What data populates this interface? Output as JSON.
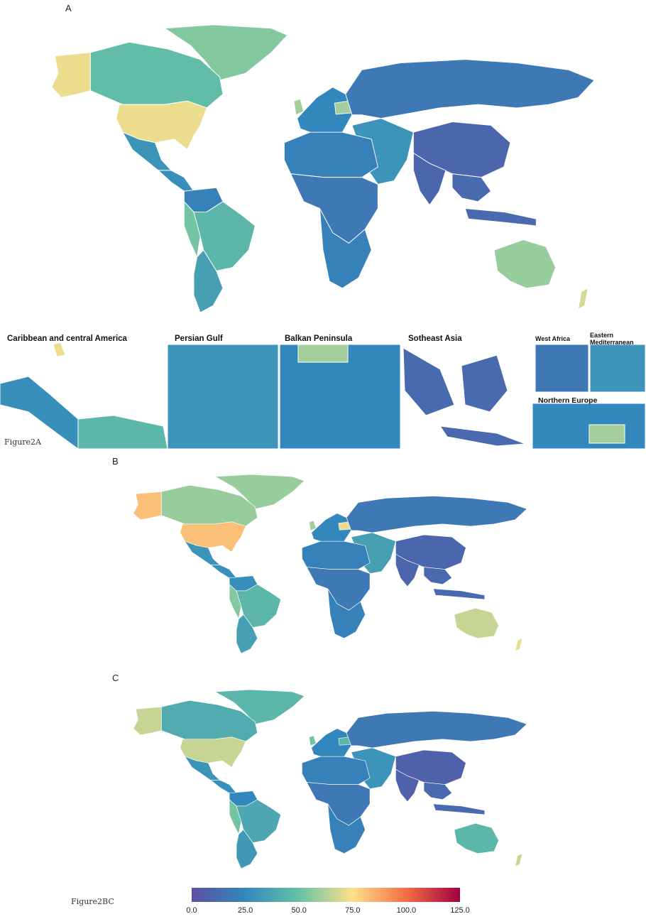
{
  "panels": {
    "a": {
      "letter": "A",
      "caption": "Figure2A"
    },
    "b": {
      "letter": "B"
    },
    "c": {
      "letter": "C",
      "caption": "Figure2BC"
    }
  },
  "insets": [
    {
      "title": "Caribbean and central America"
    },
    {
      "title": "Persian Gulf"
    },
    {
      "title": "Balkan Peninsula"
    },
    {
      "title": "Sotheast Asia"
    },
    {
      "title": "West Africa"
    },
    {
      "title": "Eastern Mediterranean"
    },
    {
      "title": "Northern Europe"
    }
  ],
  "legend": {
    "ticks": [
      "0.0",
      "25.0",
      "50.0",
      "75.0",
      "100.0",
      "125.0"
    ],
    "min": 0,
    "max": 125,
    "colors": [
      "#5e4fa2",
      "#3288bd",
      "#66c2a5",
      "#fee08b",
      "#f46d43",
      "#9e0142"
    ]
  },
  "regions": {
    "a": {
      "alaska": 72,
      "canada": 48,
      "greenland": 55,
      "usa": 72,
      "mexico": 30,
      "central_america": 28,
      "south_america_north": 22,
      "brazil": 45,
      "andes": 52,
      "southern_cone": 35,
      "europe_west": 25,
      "uk": 60,
      "poland": 60,
      "russia": 18,
      "china": 10,
      "india": 10,
      "middle_east": 30,
      "north_africa": 22,
      "sub_saharan": 18,
      "southern_africa": 22,
      "se_asia": 12,
      "australia": 58,
      "new_zealand": 68
    },
    "b": {
      "alaska": 82,
      "canada": 58,
      "greenland": 58,
      "usa": 82,
      "mexico": 30,
      "central_america": 28,
      "south_america_north": 28,
      "brazil": 45,
      "andes": 55,
      "southern_cone": 35,
      "europe_west": 25,
      "uk": 60,
      "poland": 72,
      "russia": 18,
      "china": 10,
      "india": 10,
      "middle_east": 35,
      "north_africa": 22,
      "sub_saharan": 18,
      "southern_africa": 22,
      "se_asia": 12,
      "australia": 66,
      "new_zealand": 72
    },
    "c": {
      "alaska": 66,
      "canada": 40,
      "greenland": 45,
      "usa": 66,
      "mexico": 30,
      "central_america": 28,
      "south_america_north": 25,
      "brazil": 38,
      "andes": 52,
      "southern_cone": 32,
      "europe_west": 25,
      "uk": 52,
      "poland": 45,
      "russia": 18,
      "china": 8,
      "india": 8,
      "middle_east": 30,
      "north_africa": 22,
      "sub_saharan": 18,
      "southern_africa": 22,
      "se_asia": 12,
      "australia": 45,
      "new_zealand": 66
    }
  }
}
